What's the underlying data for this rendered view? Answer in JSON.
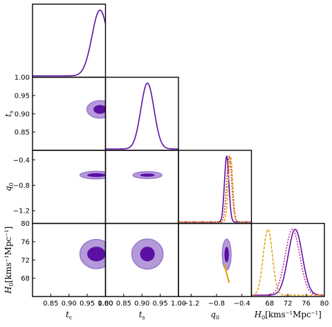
{
  "chart_data": {
    "type": "triangle-corner-plot",
    "parameters": [
      {
        "key": "tc",
        "symbol": "t",
        "sub": "c",
        "range": [
          0.8,
          1.0
        ]
      },
      {
        "key": "ts",
        "symbol": "t",
        "sub": "s",
        "range": [
          0.8,
          1.0
        ]
      },
      {
        "key": "q0",
        "symbol": "q",
        "sub": "0",
        "range": [
          -1.4,
          -0.25
        ]
      },
      {
        "key": "H0",
        "symbol": "H",
        "sub": "0",
        "unit_text": "[kms",
        "unit_exp": "−1",
        "unit_mid": "Mpc",
        "unit_exp2": "−1",
        "unit_close": "]",
        "range": [
          64.0,
          80.0
        ]
      }
    ],
    "x_ticks": {
      "tc": [
        "0.85",
        "0.90",
        "0.95",
        "1.00"
      ],
      "ts": [
        "0.80",
        "0.85",
        "0.90",
        "0.95",
        "1.00"
      ],
      "q0": [
        "−1.2",
        "−0.8",
        "−0.4"
      ],
      "H0": [
        "68",
        "72",
        "76",
        "80"
      ]
    },
    "x_tick_values": {
      "tc": [
        0.85,
        0.9,
        0.95,
        1.0
      ],
      "ts": [
        0.8,
        0.85,
        0.9,
        0.95,
        1.0
      ],
      "q0": [
        -1.2,
        -0.8,
        -0.4
      ],
      "H0": [
        68,
        72,
        76,
        80
      ]
    },
    "y_ticks": {
      "ts": [
        "1.00",
        "0.95",
        "0.90",
        "0.85"
      ],
      "q0": [
        "−0.4",
        "−0.8",
        "−1.2"
      ],
      "H0": [
        "80",
        "76",
        "72",
        "68"
      ]
    },
    "y_tick_values": {
      "ts": [
        1.0,
        0.95,
        0.9,
        0.85
      ],
      "q0": [
        -0.4,
        -0.8,
        -1.2
      ],
      "H0": [
        80,
        76,
        72,
        68
      ]
    },
    "marginals": [
      {
        "param": "tc",
        "series": [
          {
            "color": "#5b0fa3",
            "style": "solid",
            "mean": 0.985,
            "sigma": 0.022
          }
        ]
      },
      {
        "param": "ts",
        "series": [
          {
            "color": "#5b0fa3",
            "style": "solid",
            "mean": 0.915,
            "sigma": 0.018
          }
        ]
      },
      {
        "param": "q0",
        "series": [
          {
            "color": "#5b0fa3",
            "style": "solid",
            "mean": -0.64,
            "sigma": 0.035
          },
          {
            "color": "#e8a317",
            "style": "dashed",
            "mean": -0.58,
            "sigma": 0.035
          },
          {
            "color": "#c0392b",
            "style": "dotted",
            "mean": -0.6,
            "sigma": 0.04
          }
        ]
      },
      {
        "param": "H0",
        "series": [
          {
            "color": "#5b0fa3",
            "style": "solid",
            "mean": 73.6,
            "sigma": 1.55
          },
          {
            "color": "#c02090",
            "style": "dotted",
            "mean": 73.0,
            "sigma": 1.6
          },
          {
            "color": "#e8a317",
            "style": "dashed",
            "mean": 67.6,
            "sigma": 1.0
          }
        ]
      }
    ],
    "contours": [
      {
        "x": "tc",
        "y": "ts",
        "cx": 0.985,
        "cy": 0.912,
        "s68": [
          0.018,
          0.012
        ],
        "s95": [
          0.036,
          0.024
        ]
      },
      {
        "x": "tc",
        "y": "q0",
        "cx": 0.975,
        "cy": -0.64,
        "s68": [
          0.025,
          0.03
        ],
        "s95": [
          0.045,
          0.06
        ]
      },
      {
        "x": "ts",
        "y": "q0",
        "cx": 0.915,
        "cy": -0.64,
        "s68": [
          0.02,
          0.025
        ],
        "s95": [
          0.04,
          0.055
        ]
      },
      {
        "x": "tc",
        "y": "H0",
        "cx": 0.975,
        "cy": 73.3,
        "s68": [
          0.025,
          1.6
        ],
        "s95": [
          0.045,
          3.2
        ]
      },
      {
        "x": "ts",
        "y": "H0",
        "cx": 0.915,
        "cy": 73.3,
        "s68": [
          0.02,
          1.6
        ],
        "s95": [
          0.043,
          3.3
        ]
      },
      {
        "x": "q0",
        "y": "H0",
        "cx": -0.64,
        "cy": 73.2,
        "s68": [
          0.035,
          1.7
        ],
        "s95": [
          0.07,
          3.4
        ]
      }
    ],
    "extra_lines": [
      {
        "x": "q0",
        "y": "H0",
        "color": "#e8a317",
        "points": [
          [
            -0.68,
            71.0
          ],
          [
            -0.6,
            67.0
          ]
        ]
      }
    ],
    "colors": {
      "dark": "#5b0fa3",
      "light": "#b49ad8",
      "light_edge": "#8e6cc8"
    }
  }
}
